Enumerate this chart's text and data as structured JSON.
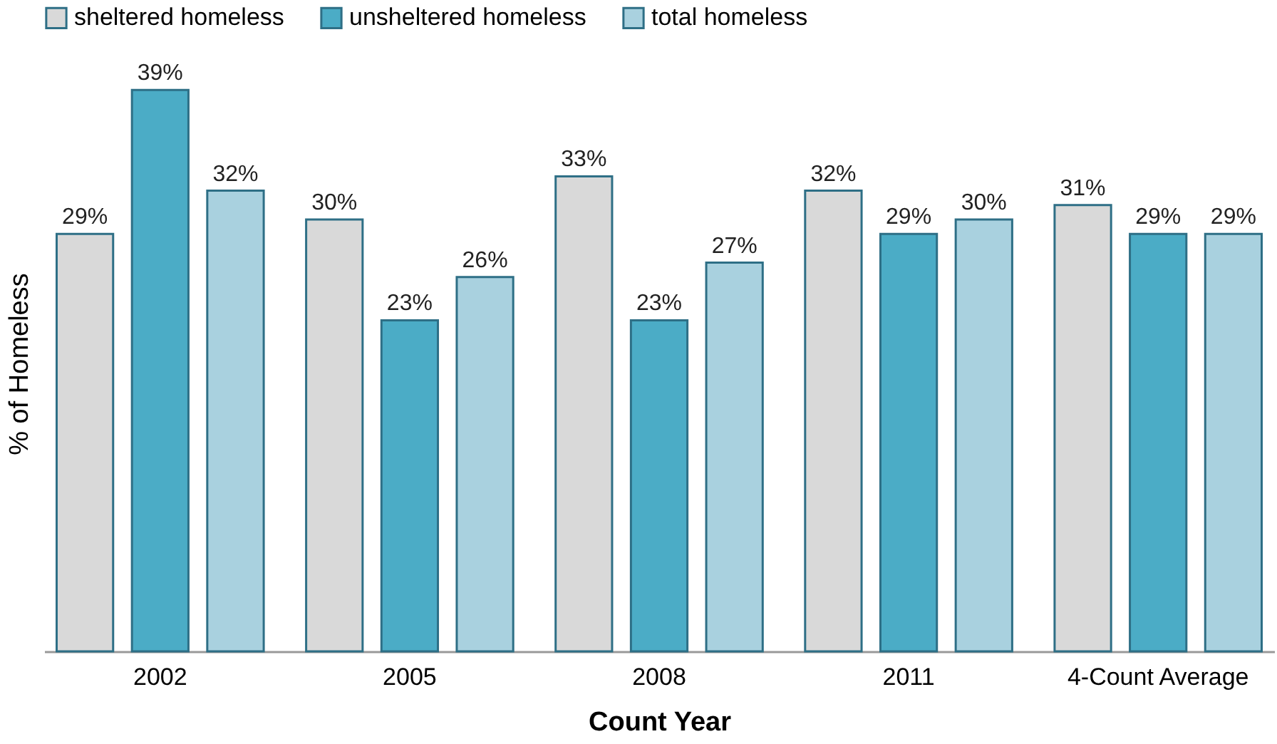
{
  "chart_data": {
    "type": "bar",
    "xlabel": "Count Year",
    "ylabel": "% of Homeless",
    "legend": "top",
    "categories": [
      "2002",
      "2005",
      "2008",
      "2011",
      "4-Count Average"
    ],
    "series": [
      {
        "name": "sheltered homeless",
        "color": "#d9d9d9",
        "values": [
          29,
          30,
          33,
          32,
          31
        ],
        "value_labels": [
          "29%",
          "30%",
          "33%",
          "32%",
          "31%"
        ]
      },
      {
        "name": "unsheltered homeless",
        "color": "#4bacc6",
        "values": [
          39,
          23,
          23,
          29,
          29
        ],
        "value_labels": [
          "39%",
          "23%",
          "23%",
          "29%",
          "29%"
        ]
      },
      {
        "name": "total homeless",
        "color": "#a9d1df",
        "values": [
          32,
          26,
          27,
          30,
          29
        ],
        "value_labels": [
          "32%",
          "26%",
          "27%",
          "30%",
          "29%"
        ]
      }
    ]
  }
}
